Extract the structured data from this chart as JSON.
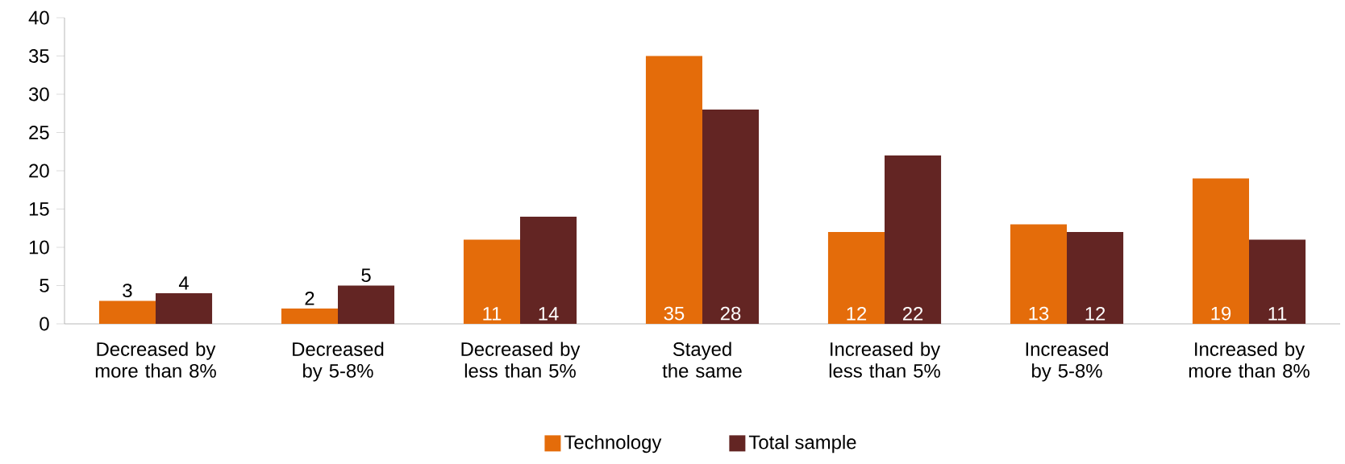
{
  "chart_data": {
    "type": "bar",
    "categories": [
      "Decreased by more than 8%",
      "Decreased by 5-8%",
      "Decreased by less than 5%",
      "Stayed the same",
      "Increased by less than 5%",
      "Increased by 5-8%",
      "Increased by more than 8%"
    ],
    "series": [
      {
        "name": "Technology",
        "color": "#e46c0a",
        "values": [
          3,
          2,
          11,
          35,
          12,
          13,
          19
        ]
      },
      {
        "name": "Total sample",
        "color": "#632523",
        "values": [
          4,
          5,
          14,
          28,
          22,
          12,
          11
        ]
      }
    ],
    "ylim": [
      0,
      40
    ],
    "yticks": [
      0,
      5,
      10,
      15,
      20,
      25,
      30,
      35,
      40
    ],
    "data_labels": true,
    "legend": "bottom",
    "grid": false
  }
}
